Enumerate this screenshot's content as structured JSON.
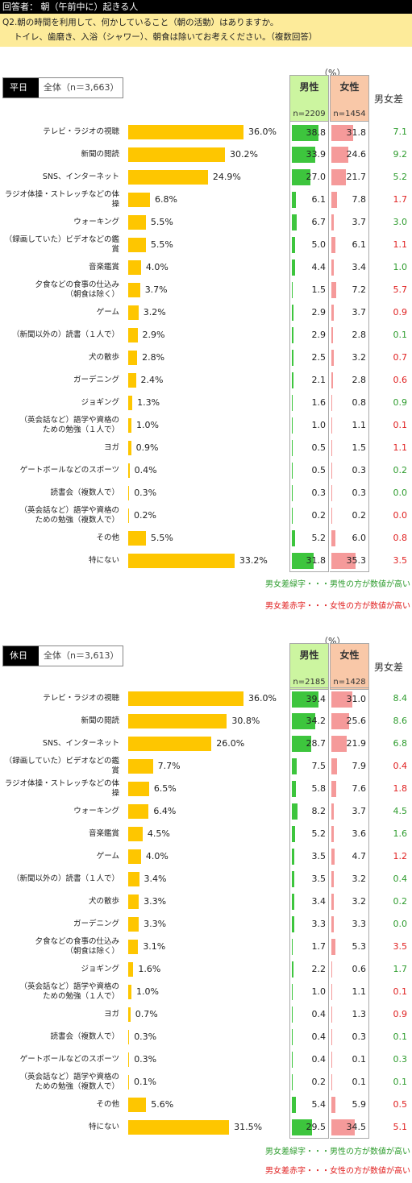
{
  "header": {
    "respondent": "回答者： 朝（午前中に）起きる人",
    "question_line1": "Q2.朝の時間を利用して、何かしていること（朝の活動）はありますか。",
    "question_line2": "トイレ、歯磨き、入浴（シャワー）、朝食は除いてお考えください。（複数回答）"
  },
  "colors": {
    "bar": "#fec600",
    "male_header": "#ccf5a0",
    "female_header": "#f9c8a8",
    "male_bar": "#3dc53d",
    "female_bar": "#f59a9a",
    "diff_male_higher": "#2e9c2e",
    "diff_female_higher": "#e02020"
  },
  "legend": {
    "green": "男女差緑字・・・男性の方が数値が高い",
    "red": "男女差赤字・・・女性の方が数値が高い"
  },
  "chart_data": [
    {
      "type": "bar",
      "segment_label": "平日",
      "total_label": "全体（n＝3,663）",
      "percent_unit": "（%）",
      "male_label": "男性",
      "female_label": "女性",
      "diff_label": "男女差",
      "male_n": "n=2209",
      "female_n": "n=1454",
      "categories": [
        "テレビ・ラジオの視聴",
        "新聞の閲読",
        "SNS、インターネット",
        "ラジオ体操・ストレッチなどの体操",
        "ウォーキング",
        "（録画していた）ビデオなどの鑑賞",
        "音楽鑑賞",
        "夕食などの食事の仕込み\n（朝食は除く）",
        "ゲーム",
        "（新聞以外の）読書（１人で）",
        "犬の散歩",
        "ガーデニング",
        "ジョギング",
        "（英会話など）語学や資格の\nための勉強（１人で）",
        "ヨガ",
        "ゲートボールなどのスポーツ",
        "読書会（複数人で）",
        "（英会話など）語学や資格の\nための勉強（複数人で）",
        "その他",
        "特にない"
      ],
      "values": [
        36.0,
        30.2,
        24.9,
        6.8,
        5.5,
        5.5,
        4.0,
        3.7,
        3.2,
        2.9,
        2.8,
        2.4,
        1.3,
        1.0,
        0.9,
        0.4,
        0.3,
        0.2,
        5.5,
        33.2
      ],
      "value_labels": [
        "36.0%",
        "30.2%",
        "24.9%",
        "6.8%",
        "5.5%",
        "5.5%",
        "4.0%",
        "3.7%",
        "3.2%",
        "2.9%",
        "2.8%",
        "2.4%",
        "1.3%",
        "1.0%",
        "0.9%",
        "0.4%",
        "0.3%",
        "0.2%",
        "5.5%",
        "33.2%"
      ],
      "male": [
        38.8,
        33.9,
        27.0,
        6.1,
        6.7,
        5.0,
        4.4,
        1.5,
        2.9,
        2.9,
        2.5,
        2.1,
        1.6,
        1.0,
        0.5,
        0.5,
        0.3,
        0.2,
        5.2,
        31.8
      ],
      "female": [
        31.8,
        24.6,
        21.7,
        7.8,
        3.7,
        6.1,
        3.4,
        7.2,
        3.7,
        2.8,
        3.2,
        2.8,
        0.8,
        1.1,
        1.5,
        0.3,
        0.3,
        0.2,
        6.0,
        35.3
      ],
      "male_labels": [
        "38.8",
        "33.9",
        "27.0",
        "6.1",
        "6.7",
        "5.0",
        "4.4",
        "1.5",
        "2.9",
        "2.9",
        "2.5",
        "2.1",
        "1.6",
        "1.0",
        "0.5",
        "0.5",
        "0.3",
        "0.2",
        "5.2",
        "31.8"
      ],
      "female_labels": [
        "31.8",
        "24.6",
        "21.7",
        "7.8",
        "3.7",
        "6.1",
        "3.4",
        "7.2",
        "3.7",
        "2.8",
        "3.2",
        "2.8",
        "0.8",
        "1.1",
        "1.5",
        "0.3",
        "0.3",
        "0.2",
        "6.0",
        "35.3"
      ],
      "diff_labels": [
        "7.1",
        "9.2",
        "5.2",
        "1.7",
        "3.0",
        "1.1",
        "1.0",
        "5.7",
        "0.9",
        "0.1",
        "0.7",
        "0.6",
        "0.9",
        "0.1",
        "1.1",
        "0.2",
        "0.0",
        "0.0",
        "0.8",
        "3.5"
      ],
      "diff_color": [
        "g",
        "g",
        "g",
        "r",
        "g",
        "r",
        "g",
        "r",
        "r",
        "g",
        "r",
        "r",
        "g",
        "r",
        "r",
        "g",
        "g",
        "r",
        "r",
        "r"
      ]
    },
    {
      "type": "bar",
      "segment_label": "休日",
      "total_label": "全体（n＝3,613）",
      "percent_unit": "（%）",
      "male_label": "男性",
      "female_label": "女性",
      "diff_label": "男女差",
      "male_n": "n=2185",
      "female_n": "n=1428",
      "categories": [
        "テレビ・ラジオの視聴",
        "新聞の閲読",
        "SNS、インターネット",
        "（録画していた）ビデオなどの鑑賞",
        "ラジオ体操・ストレッチなどの体操",
        "ウォーキング",
        "音楽鑑賞",
        "ゲーム",
        "（新聞以外の）読書（１人で）",
        "犬の散歩",
        "ガーデニング",
        "夕食などの食事の仕込み\n（朝食は除く）",
        "ジョギング",
        "（英会話など）語学や資格の\nための勉強（１人で）",
        "ヨガ",
        "読書会（複数人で）",
        "ゲートボールなどのスポーツ",
        "（英会話など）語学や資格の\nための勉強（複数人で）",
        "その他",
        "特にない"
      ],
      "values": [
        36.0,
        30.8,
        26.0,
        7.7,
        6.5,
        6.4,
        4.5,
        4.0,
        3.4,
        3.3,
        3.3,
        3.1,
        1.6,
        1.0,
        0.7,
        0.3,
        0.3,
        0.1,
        5.6,
        31.5
      ],
      "value_labels": [
        "36.0%",
        "30.8%",
        "26.0%",
        "7.7%",
        "6.5%",
        "6.4%",
        "4.5%",
        "4.0%",
        "3.4%",
        "3.3%",
        "3.3%",
        "3.1%",
        "1.6%",
        "1.0%",
        "0.7%",
        "0.3%",
        "0.3%",
        "0.1%",
        "5.6%",
        "31.5%"
      ],
      "male": [
        39.4,
        34.2,
        28.7,
        7.5,
        5.8,
        8.2,
        5.2,
        3.5,
        3.5,
        3.4,
        3.3,
        1.7,
        2.2,
        1.0,
        0.4,
        0.4,
        0.4,
        0.2,
        5.4,
        29.5
      ],
      "female": [
        31.0,
        25.6,
        21.9,
        7.9,
        7.6,
        3.7,
        3.6,
        4.7,
        3.2,
        3.2,
        3.3,
        5.3,
        0.6,
        1.1,
        1.3,
        0.3,
        0.1,
        0.1,
        5.9,
        34.5
      ],
      "male_labels": [
        "39.4",
        "34.2",
        "28.7",
        "7.5",
        "5.8",
        "8.2",
        "5.2",
        "3.5",
        "3.5",
        "3.4",
        "3.3",
        "1.7",
        "2.2",
        "1.0",
        "0.4",
        "0.4",
        "0.4",
        "0.2",
        "5.4",
        "29.5"
      ],
      "female_labels": [
        "31.0",
        "25.6",
        "21.9",
        "7.9",
        "7.6",
        "3.7",
        "3.6",
        "4.7",
        "3.2",
        "3.2",
        "3.3",
        "5.3",
        "0.6",
        "1.1",
        "1.3",
        "0.3",
        "0.1",
        "0.1",
        "5.9",
        "34.5"
      ],
      "diff_labels": [
        "8.4",
        "8.6",
        "6.8",
        "0.4",
        "1.8",
        "4.5",
        "1.6",
        "1.2",
        "0.4",
        "0.2",
        "0.0",
        "3.5",
        "1.7",
        "0.1",
        "0.9",
        "0.1",
        "0.3",
        "0.1",
        "0.5",
        "5.1"
      ],
      "diff_color": [
        "g",
        "g",
        "g",
        "r",
        "r",
        "g",
        "g",
        "r",
        "g",
        "g",
        "g",
        "r",
        "g",
        "r",
        "r",
        "g",
        "g",
        "g",
        "r",
        "r"
      ]
    }
  ]
}
